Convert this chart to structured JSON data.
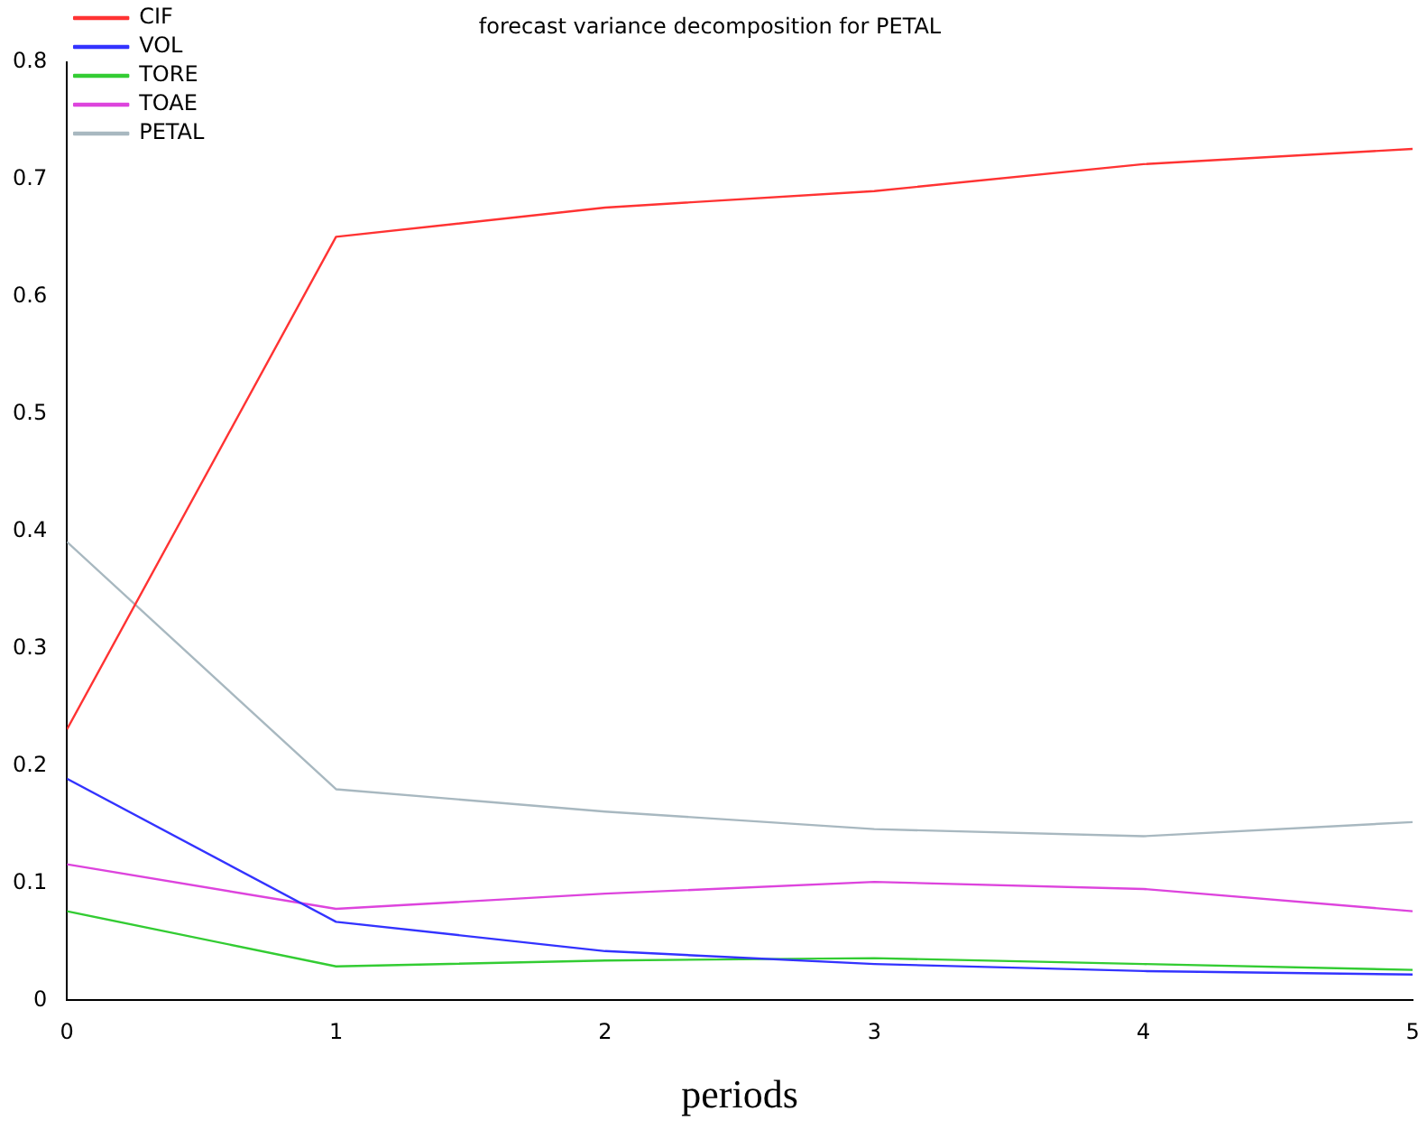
{
  "chart_data": {
    "type": "line",
    "title": "forecast variance decomposition for PETAL",
    "xlabel": "periods",
    "x": [
      0,
      1,
      2,
      3,
      4,
      5
    ],
    "xlim": [
      0,
      5
    ],
    "xticks": [
      0,
      1,
      2,
      3,
      4,
      5
    ],
    "ylim": [
      0,
      0.8
    ],
    "yticks": [
      0,
      0.1,
      0.2,
      0.3,
      0.4,
      0.5,
      0.6,
      0.7,
      0.8
    ],
    "grid": false,
    "legend": "top left",
    "marker": "none",
    "line_style": "solid",
    "series": [
      {
        "name": "CIF",
        "color": "#ff3333",
        "values": [
          0.231,
          0.651,
          0.676,
          0.69,
          0.713,
          0.726
        ]
      },
      {
        "name": "VOL",
        "color": "#3333ff",
        "values": [
          0.189,
          0.067,
          0.042,
          0.031,
          0.025,
          0.022
        ]
      },
      {
        "name": "TORE",
        "color": "#33cc33",
        "values": [
          0.076,
          0.029,
          0.034,
          0.036,
          0.031,
          0.026
        ]
      },
      {
        "name": "TOAE",
        "color": "#dd44dd",
        "values": [
          0.116,
          0.078,
          0.091,
          0.101,
          0.095,
          0.076
        ]
      },
      {
        "name": "PETAL",
        "color": "#a8b8c0",
        "values": [
          0.391,
          0.18,
          0.161,
          0.146,
          0.14,
          0.152
        ]
      }
    ]
  }
}
